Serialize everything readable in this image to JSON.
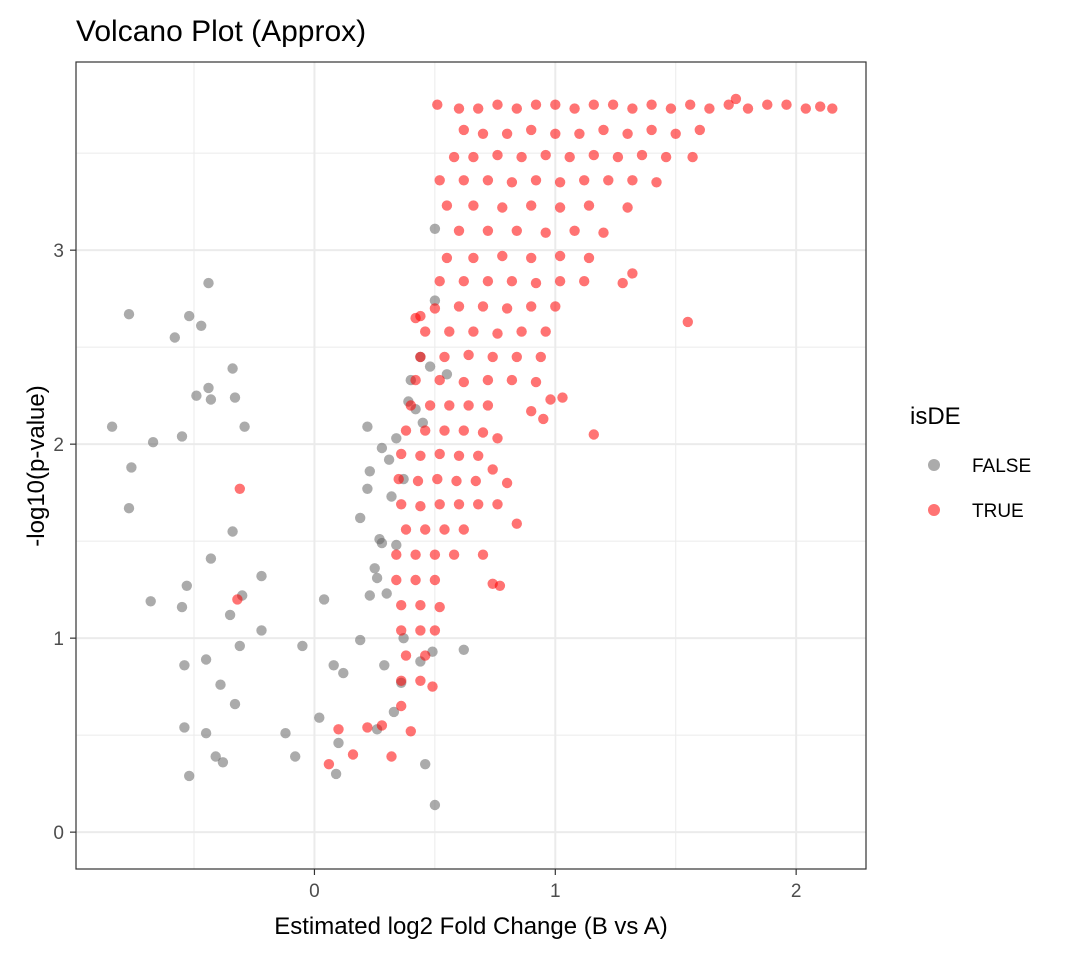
{
  "chart_data": {
    "type": "scatter",
    "title": "Volcano Plot (Approx)",
    "xlabel": "Estimated log2 Fold Change (B vs A)",
    "ylabel": "-log10(p-value)",
    "xlim": [
      -0.99,
      2.29
    ],
    "ylim": [
      -0.19,
      3.97
    ],
    "x_ticks": [
      0,
      1,
      2
    ],
    "x_tick_labels": [
      "0",
      "1",
      "2"
    ],
    "y_ticks": [
      0,
      1,
      2,
      3
    ],
    "y_tick_labels": [
      "0",
      "1",
      "2",
      "3"
    ],
    "grid": true,
    "legend": {
      "title": "isDE",
      "position": "right"
    },
    "series": [
      {
        "name": "FALSE",
        "color": "#666666",
        "opacity": 0.55,
        "points": [
          [
            -0.84,
            2.09
          ],
          [
            -0.76,
            1.88
          ],
          [
            -0.77,
            1.67
          ],
          [
            -0.67,
            2.01
          ],
          [
            -0.77,
            2.67
          ],
          [
            -0.58,
            2.55
          ],
          [
            -0.52,
            2.66
          ],
          [
            -0.47,
            2.61
          ],
          [
            -0.44,
            2.83
          ],
          [
            -0.53,
            1.27
          ],
          [
            -0.55,
            1.16
          ],
          [
            -0.68,
            1.19
          ],
          [
            -0.54,
            0.86
          ],
          [
            -0.54,
            0.54
          ],
          [
            -0.52,
            0.29
          ],
          [
            -0.41,
            0.39
          ],
          [
            -0.38,
            0.36
          ],
          [
            -0.45,
            0.51
          ],
          [
            -0.55,
            2.04
          ],
          [
            -0.49,
            2.25
          ],
          [
            -0.44,
            2.29
          ],
          [
            -0.43,
            2.23
          ],
          [
            -0.34,
            2.39
          ],
          [
            -0.33,
            2.24
          ],
          [
            -0.29,
            2.09
          ],
          [
            -0.43,
            1.41
          ],
          [
            -0.34,
            1.55
          ],
          [
            -0.22,
            1.32
          ],
          [
            -0.22,
            1.04
          ],
          [
            -0.05,
            0.96
          ],
          [
            0.08,
            0.86
          ],
          [
            0.19,
            0.99
          ],
          [
            0.04,
            1.2
          ],
          [
            0.12,
            0.82
          ],
          [
            -0.12,
            0.51
          ],
          [
            0.02,
            0.59
          ],
          [
            0.09,
            0.3
          ],
          [
            -0.08,
            0.39
          ],
          [
            0.1,
            0.46
          ],
          [
            -0.33,
            0.66
          ],
          [
            -0.39,
            0.76
          ],
          [
            -0.45,
            0.89
          ],
          [
            -0.35,
            1.12
          ],
          [
            -0.31,
            0.96
          ],
          [
            -0.3,
            1.22
          ],
          [
            0.26,
            1.31
          ],
          [
            0.23,
            1.22
          ],
          [
            0.25,
            1.36
          ],
          [
            0.28,
            1.49
          ],
          [
            0.19,
            1.62
          ],
          [
            0.27,
            1.51
          ],
          [
            0.22,
            1.77
          ],
          [
            0.23,
            1.86
          ],
          [
            0.28,
            1.98
          ],
          [
            0.22,
            2.09
          ],
          [
            0.34,
            1.48
          ],
          [
            0.32,
            1.73
          ],
          [
            0.31,
            1.92
          ],
          [
            0.37,
            1.82
          ],
          [
            0.34,
            2.03
          ],
          [
            0.39,
            2.22
          ],
          [
            0.4,
            2.33
          ],
          [
            0.42,
            2.18
          ],
          [
            0.45,
            2.11
          ],
          [
            0.37,
            1.0
          ],
          [
            0.36,
            0.77
          ],
          [
            0.44,
            0.88
          ],
          [
            0.49,
            0.93
          ],
          [
            0.46,
            0.35
          ],
          [
            0.5,
            0.14
          ],
          [
            0.62,
            0.94
          ],
          [
            0.5,
            2.74
          ],
          [
            0.5,
            3.11
          ],
          [
            0.48,
            2.4
          ],
          [
            0.44,
            2.45
          ],
          [
            0.55,
            2.36
          ],
          [
            0.3,
            1.23
          ],
          [
            0.29,
            0.86
          ],
          [
            0.33,
            0.62
          ],
          [
            0.26,
            0.53
          ]
        ]
      },
      {
        "name": "TRUE",
        "color": "#ff0000",
        "opacity": 0.55,
        "points": [
          [
            0.51,
            3.75
          ],
          [
            0.6,
            3.73
          ],
          [
            0.68,
            3.73
          ],
          [
            0.76,
            3.75
          ],
          [
            0.84,
            3.73
          ],
          [
            0.92,
            3.75
          ],
          [
            1.0,
            3.75
          ],
          [
            1.08,
            3.73
          ],
          [
            1.16,
            3.75
          ],
          [
            1.24,
            3.75
          ],
          [
            1.32,
            3.73
          ],
          [
            1.4,
            3.75
          ],
          [
            1.48,
            3.73
          ],
          [
            1.56,
            3.75
          ],
          [
            1.64,
            3.73
          ],
          [
            1.72,
            3.75
          ],
          [
            1.75,
            3.78
          ],
          [
            1.8,
            3.73
          ],
          [
            1.88,
            3.75
          ],
          [
            1.96,
            3.75
          ],
          [
            2.04,
            3.73
          ],
          [
            2.1,
            3.74
          ],
          [
            2.15,
            3.73
          ],
          [
            0.62,
            3.62
          ],
          [
            0.7,
            3.6
          ],
          [
            0.8,
            3.6
          ],
          [
            0.9,
            3.62
          ],
          [
            1.0,
            3.6
          ],
          [
            1.1,
            3.6
          ],
          [
            1.2,
            3.62
          ],
          [
            1.3,
            3.6
          ],
          [
            1.4,
            3.62
          ],
          [
            1.5,
            3.6
          ],
          [
            1.6,
            3.62
          ],
          [
            0.58,
            3.48
          ],
          [
            0.66,
            3.48
          ],
          [
            0.76,
            3.49
          ],
          [
            0.86,
            3.48
          ],
          [
            0.96,
            3.49
          ],
          [
            1.06,
            3.48
          ],
          [
            1.16,
            3.49
          ],
          [
            1.26,
            3.48
          ],
          [
            1.36,
            3.49
          ],
          [
            1.46,
            3.48
          ],
          [
            1.57,
            3.48
          ],
          [
            0.52,
            3.36
          ],
          [
            0.62,
            3.36
          ],
          [
            0.72,
            3.36
          ],
          [
            0.82,
            3.35
          ],
          [
            0.92,
            3.36
          ],
          [
            1.02,
            3.35
          ],
          [
            1.12,
            3.36
          ],
          [
            1.22,
            3.36
          ],
          [
            1.32,
            3.36
          ],
          [
            1.42,
            3.35
          ],
          [
            0.55,
            3.23
          ],
          [
            0.66,
            3.23
          ],
          [
            0.78,
            3.22
          ],
          [
            0.9,
            3.23
          ],
          [
            1.02,
            3.22
          ],
          [
            1.14,
            3.23
          ],
          [
            1.3,
            3.22
          ],
          [
            0.6,
            3.1
          ],
          [
            0.72,
            3.1
          ],
          [
            0.84,
            3.1
          ],
          [
            0.96,
            3.09
          ],
          [
            1.08,
            3.1
          ],
          [
            1.2,
            3.09
          ],
          [
            0.55,
            2.96
          ],
          [
            0.66,
            2.96
          ],
          [
            0.78,
            2.97
          ],
          [
            0.9,
            2.96
          ],
          [
            1.02,
            2.97
          ],
          [
            1.14,
            2.96
          ],
          [
            0.52,
            2.84
          ],
          [
            0.62,
            2.84
          ],
          [
            0.72,
            2.84
          ],
          [
            0.82,
            2.84
          ],
          [
            0.92,
            2.83
          ],
          [
            1.02,
            2.84
          ],
          [
            1.12,
            2.84
          ],
          [
            1.28,
            2.83
          ],
          [
            1.32,
            2.88
          ],
          [
            0.5,
            2.7
          ],
          [
            0.6,
            2.71
          ],
          [
            0.7,
            2.71
          ],
          [
            0.8,
            2.7
          ],
          [
            0.9,
            2.71
          ],
          [
            1.0,
            2.71
          ],
          [
            0.46,
            2.58
          ],
          [
            0.56,
            2.58
          ],
          [
            0.66,
            2.58
          ],
          [
            0.76,
            2.57
          ],
          [
            0.86,
            2.58
          ],
          [
            0.96,
            2.58
          ],
          [
            0.44,
            2.45
          ],
          [
            0.54,
            2.45
          ],
          [
            0.64,
            2.46
          ],
          [
            0.74,
            2.45
          ],
          [
            0.84,
            2.45
          ],
          [
            0.94,
            2.45
          ],
          [
            1.55,
            2.63
          ],
          [
            0.42,
            2.33
          ],
          [
            0.52,
            2.33
          ],
          [
            0.62,
            2.32
          ],
          [
            0.72,
            2.33
          ],
          [
            0.82,
            2.33
          ],
          [
            0.92,
            2.32
          ],
          [
            0.98,
            2.23
          ],
          [
            1.03,
            2.24
          ],
          [
            0.9,
            2.17
          ],
          [
            0.95,
            2.13
          ],
          [
            1.16,
            2.05
          ],
          [
            0.4,
            2.2
          ],
          [
            0.48,
            2.2
          ],
          [
            0.56,
            2.2
          ],
          [
            0.64,
            2.2
          ],
          [
            0.72,
            2.2
          ],
          [
            0.38,
            2.07
          ],
          [
            0.46,
            2.07
          ],
          [
            0.54,
            2.07
          ],
          [
            0.62,
            2.07
          ],
          [
            0.7,
            2.06
          ],
          [
            0.76,
            2.03
          ],
          [
            0.36,
            1.95
          ],
          [
            0.44,
            1.94
          ],
          [
            0.52,
            1.95
          ],
          [
            0.6,
            1.94
          ],
          [
            0.68,
            1.94
          ],
          [
            0.74,
            1.87
          ],
          [
            0.8,
            1.8
          ],
          [
            0.35,
            1.82
          ],
          [
            0.43,
            1.81
          ],
          [
            0.51,
            1.82
          ],
          [
            0.59,
            1.81
          ],
          [
            0.67,
            1.81
          ],
          [
            0.36,
            1.69
          ],
          [
            0.44,
            1.68
          ],
          [
            0.52,
            1.69
          ],
          [
            0.6,
            1.69
          ],
          [
            0.68,
            1.69
          ],
          [
            0.76,
            1.69
          ],
          [
            0.84,
            1.59
          ],
          [
            0.38,
            1.56
          ],
          [
            0.46,
            1.56
          ],
          [
            0.54,
            1.56
          ],
          [
            0.62,
            1.56
          ],
          [
            0.7,
            1.43
          ],
          [
            0.74,
            1.28
          ],
          [
            0.77,
            1.27
          ],
          [
            0.34,
            1.43
          ],
          [
            0.42,
            1.43
          ],
          [
            0.5,
            1.43
          ],
          [
            0.58,
            1.43
          ],
          [
            0.34,
            1.3
          ],
          [
            0.42,
            1.3
          ],
          [
            0.5,
            1.3
          ],
          [
            0.36,
            1.17
          ],
          [
            0.44,
            1.17
          ],
          [
            0.52,
            1.16
          ],
          [
            0.36,
            1.04
          ],
          [
            0.44,
            1.04
          ],
          [
            0.5,
            1.04
          ],
          [
            0.38,
            0.91
          ],
          [
            0.46,
            0.91
          ],
          [
            0.36,
            0.78
          ],
          [
            0.44,
            0.78
          ],
          [
            0.49,
            0.75
          ],
          [
            0.36,
            0.65
          ],
          [
            0.4,
            0.52
          ],
          [
            0.32,
            0.39
          ],
          [
            0.28,
            0.55
          ],
          [
            0.22,
            0.54
          ],
          [
            0.16,
            0.4
          ],
          [
            0.1,
            0.53
          ],
          [
            0.06,
            0.35
          ],
          [
            -0.31,
            1.77
          ],
          [
            -0.32,
            1.2
          ],
          [
            0.42,
            2.65
          ],
          [
            0.44,
            2.66
          ]
        ]
      }
    ]
  }
}
